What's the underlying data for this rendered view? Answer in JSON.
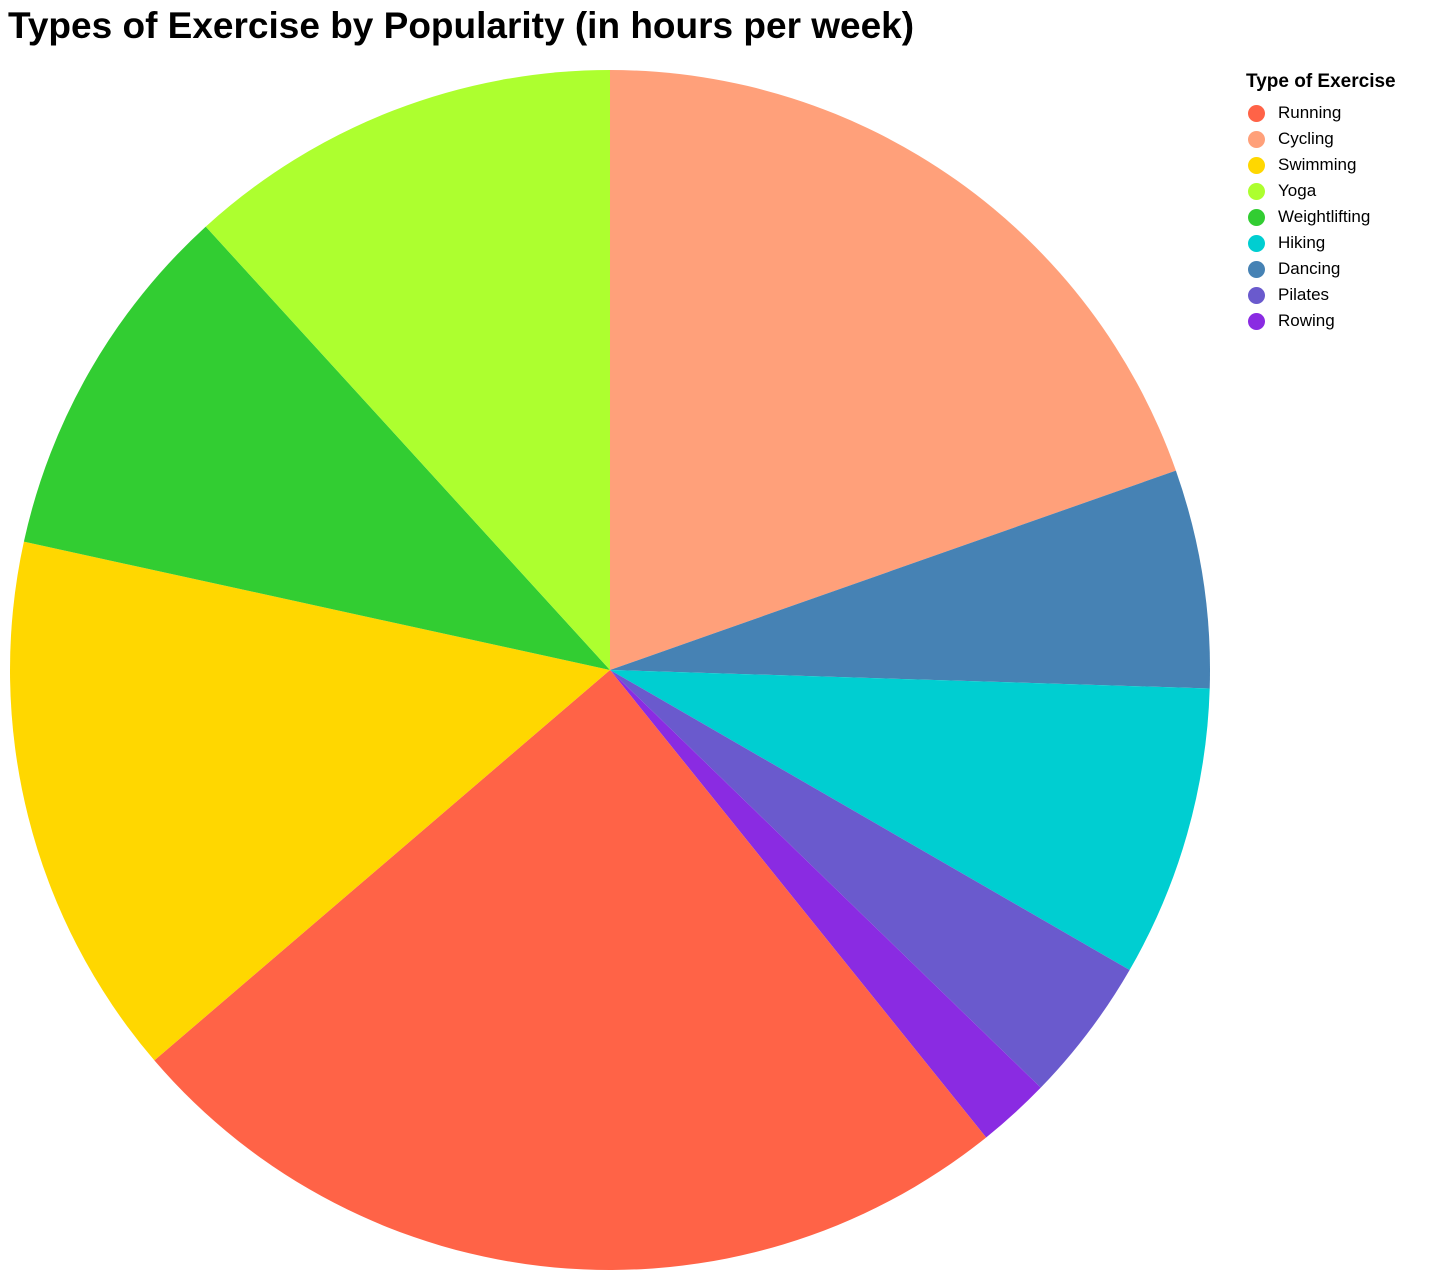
{
  "chart_data": {
    "type": "pie",
    "title": "Types of Exercise by Popularity (in hours per week)",
    "legend_title": "Type of Exercise",
    "legend_placement": "top-right",
    "unit": "hours per week",
    "slices": [
      {
        "label": "Running",
        "value": 25,
        "color": "#FF6347"
      },
      {
        "label": "Cycling",
        "value": 20,
        "color": "#FFA07A"
      },
      {
        "label": "Swimming",
        "value": 15,
        "color": "#FFD700"
      },
      {
        "label": "Yoga",
        "value": 12,
        "color": "#ADFF2F"
      },
      {
        "label": "Weightlifting",
        "value": 10,
        "color": "#32CD32"
      },
      {
        "label": "Hiking",
        "value": 8,
        "color": "#00CED1"
      },
      {
        "label": "Dancing",
        "value": 6,
        "color": "#4682B4"
      },
      {
        "label": "Pilates",
        "value": 4,
        "color": "#6A5ACD"
      },
      {
        "label": "Rowing",
        "value": 2,
        "color": "#8A2BE2"
      }
    ],
    "drawing_order": [
      "Cycling",
      "Dancing",
      "Hiking",
      "Pilates",
      "Rowing",
      "Running",
      "Swimming",
      "Weightlifting",
      "Yoga"
    ]
  }
}
